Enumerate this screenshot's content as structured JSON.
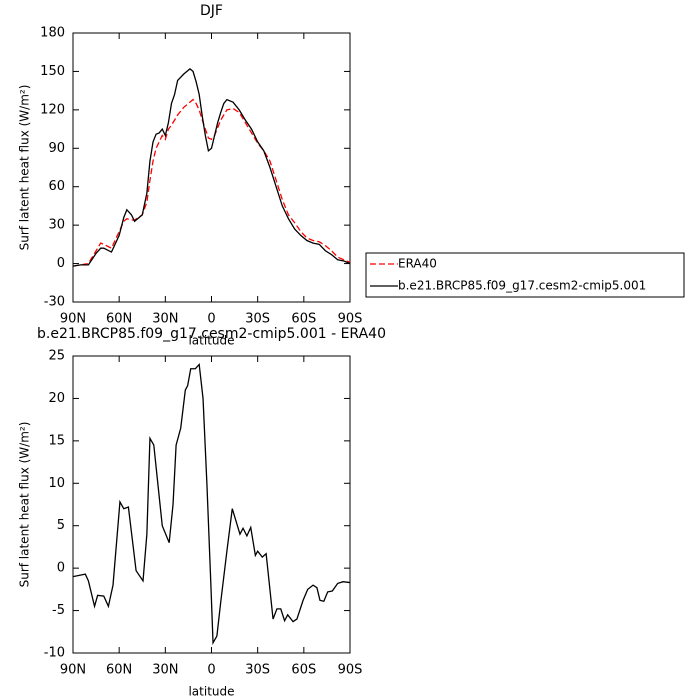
{
  "chart_data": [
    {
      "type": "line",
      "title": "DJF",
      "xlabel": "latitude",
      "ylabel": "Surf latent heat flux (W/m²)",
      "x": [
        90,
        85,
        80,
        75,
        72,
        70,
        65,
        60,
        57,
        55,
        52,
        50,
        45,
        42,
        40,
        38,
        36,
        34,
        32,
        30,
        28,
        26,
        24,
        22,
        18,
        14,
        12,
        10,
        8,
        6,
        4,
        2,
        0,
        -2,
        -4,
        -6,
        -8,
        -10,
        -14,
        -18,
        -22,
        -26,
        -30,
        -34,
        -38,
        -42,
        -46,
        -50,
        -54,
        -58,
        -62,
        -66,
        -70,
        -74,
        -78,
        -82,
        -86,
        -90
      ],
      "series": [
        {
          "name": "ERA40",
          "color": "#ff0000",
          "dash": true,
          "values": [
            -2,
            -1,
            0,
            10,
            16,
            15,
            12,
            25,
            33,
            35,
            34,
            34,
            38,
            48,
            65,
            80,
            90,
            95,
            100,
            97,
            105,
            108,
            112,
            116,
            122,
            126,
            128,
            125,
            120,
            112,
            105,
            98,
            97,
            100,
            106,
            112,
            116,
            120,
            121,
            118,
            110,
            102,
            94,
            88,
            80,
            65,
            50,
            38,
            32,
            25,
            20,
            18,
            17,
            14,
            10,
            5,
            3,
            1
          ]
        },
        {
          "name": "b.e21.BRCP85.f09_g17.cesm2-cmip5.001",
          "color": "#000000",
          "dash": false,
          "values": [
            -2,
            -1,
            -1,
            8,
            12,
            12,
            9,
            22,
            36,
            42,
            38,
            33,
            38,
            55,
            80,
            95,
            101,
            102,
            105,
            100,
            110,
            125,
            132,
            143,
            148,
            152,
            150,
            142,
            132,
            115,
            100,
            88,
            90,
            100,
            110,
            118,
            125,
            128,
            126,
            120,
            112,
            105,
            95,
            88,
            75,
            60,
            45,
            35,
            27,
            22,
            18,
            16,
            15,
            10,
            7,
            3,
            2,
            0
          ]
        }
      ],
      "xlim": [
        90,
        -90
      ],
      "xticks": [
        {
          "value": 90,
          "label": "90N"
        },
        {
          "value": 60,
          "label": "60N"
        },
        {
          "value": 30,
          "label": "30N"
        },
        0,
        {
          "value": -30,
          "label": "30S"
        },
        {
          "value": -60,
          "label": "60S"
        },
        {
          "value": -90,
          "label": "90S"
        }
      ],
      "ylim": [
        -30,
        180
      ],
      "yticks": [
        -30,
        0,
        30,
        60,
        90,
        120,
        150,
        180
      ],
      "legend": "outside-right"
    },
    {
      "type": "line",
      "title": "b.e21.BRCP85.f09_g17.cesm2-cmip5.001 - ERA40",
      "xlabel": "latitude",
      "ylabel": "Surf latent heat flux (W/m²)",
      "x": [
        90,
        82,
        80,
        76,
        74,
        70,
        67,
        64,
        59.5,
        57,
        54,
        49,
        44.5,
        42,
        40,
        37.5,
        32,
        27.5,
        25,
        23,
        20,
        17,
        15.5,
        13.5,
        10.5,
        8,
        5.5,
        3,
        0.5,
        -1,
        -3.5,
        -6,
        -10,
        -13.5,
        -16,
        -18.5,
        -20.5,
        -23,
        -25.5,
        -28.5,
        -30,
        -33,
        -35.5,
        -40,
        -42.5,
        -45,
        -47.5,
        -49.5,
        -53,
        -55.5,
        -59.5,
        -62.5,
        -66,
        -68.5,
        -70.5,
        -73,
        -75.5,
        -78.5,
        -82,
        -85.5,
        -90
      ],
      "series": [
        {
          "color": "#000000",
          "dash": false,
          "values": [
            -1,
            -0.7,
            -1.5,
            -4.5,
            -3.2,
            -3.3,
            -4.5,
            -2,
            7.8,
            7,
            7.2,
            -0.3,
            -1.5,
            4,
            15.3,
            14.5,
            5,
            3,
            7.5,
            14.5,
            16.5,
            21,
            21.5,
            23.5,
            23.5,
            24,
            20,
            10,
            -1.5,
            -8.8,
            -8,
            -4,
            2,
            7,
            5.5,
            4,
            4.7,
            3.8,
            4.8,
            1.5,
            2,
            1.3,
            1.7,
            -6,
            -4.8,
            -4.8,
            -6.2,
            -5.5,
            -6.3,
            -6,
            -3.8,
            -2.5,
            -2,
            -2.3,
            -3.8,
            -3.9,
            -2.8,
            -2.7,
            -1.8,
            -1.6,
            -1.7
          ]
        }
      ],
      "xlim": [
        90,
        -90
      ],
      "xticks": [
        {
          "value": 90,
          "label": "90N"
        },
        {
          "value": 60,
          "label": "60N"
        },
        {
          "value": 30,
          "label": "30N"
        },
        0,
        {
          "value": -30,
          "label": "30S"
        },
        {
          "value": -60,
          "label": "60S"
        },
        {
          "value": -90,
          "label": "90S"
        }
      ],
      "ylim": [
        -10,
        25
      ],
      "yticks": [
        -10,
        -5,
        0,
        5,
        10,
        15,
        20,
        25
      ]
    }
  ]
}
